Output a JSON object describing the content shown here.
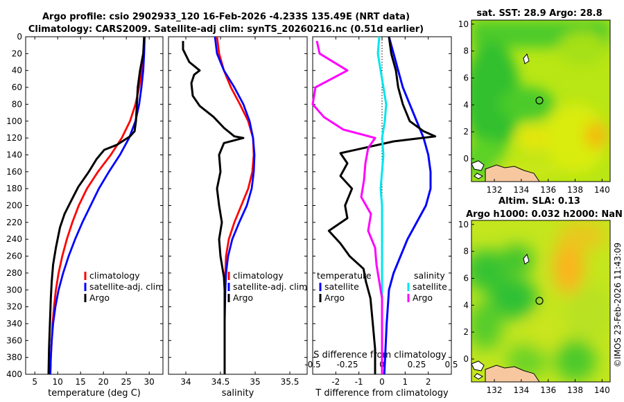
{
  "title": {
    "line1": "Argo profile: csio 2902933_120 16-Feb-2026 -4.233S 135.49E (NRT data)",
    "line2": "Climatology: CARS2009. Satellite-adj clim: synTS_20260216.nc (0.51d earlier)"
  },
  "colors": {
    "climatology": "#ff0000",
    "satellite": "#0000ff",
    "argo": "#000000",
    "salinity_diff": "#00e5ee",
    "temperature_diff_sat": "#ff00ff"
  },
  "footer": "©IMOS 23-Feb-2026 11:43:09",
  "chart_data": [
    {
      "type": "line",
      "name": "temperature-profile",
      "xlabel": "temperature (deg C)",
      "ylabel": "depth",
      "xlim": [
        3,
        33
      ],
      "ylim": [
        400,
        0
      ],
      "xticks": [
        5,
        10,
        15,
        20,
        25,
        30
      ],
      "yticks": [
        0,
        20,
        40,
        60,
        80,
        100,
        120,
        140,
        160,
        180,
        200,
        220,
        240,
        260,
        280,
        300,
        320,
        340,
        360,
        380,
        400
      ],
      "legend": [
        "climatology",
        "satellite-adj. clim",
        "Argo"
      ],
      "series": [
        {
          "name": "climatology",
          "color": "#ff0000",
          "points": [
            [
              28.9,
              0
            ],
            [
              28.8,
              20
            ],
            [
              28.4,
              40
            ],
            [
              27.8,
              60
            ],
            [
              27.0,
              80
            ],
            [
              25.8,
              100
            ],
            [
              24.0,
              120
            ],
            [
              21.6,
              140
            ],
            [
              18.8,
              160
            ],
            [
              16.4,
              180
            ],
            [
              14.6,
              200
            ],
            [
              13.2,
              220
            ],
            [
              12.0,
              240
            ],
            [
              11.0,
              260
            ],
            [
              10.2,
              280
            ],
            [
              9.6,
              300
            ],
            [
              9.2,
              320
            ],
            [
              8.9,
              340
            ],
            [
              8.7,
              360
            ],
            [
              8.5,
              380
            ],
            [
              8.4,
              400
            ]
          ]
        },
        {
          "name": "satellite-adj. clim",
          "color": "#0000ff",
          "points": [
            [
              29.0,
              0
            ],
            [
              28.9,
              20
            ],
            [
              28.7,
              40
            ],
            [
              28.3,
              60
            ],
            [
              27.8,
              80
            ],
            [
              27.0,
              100
            ],
            [
              25.6,
              120
            ],
            [
              23.6,
              140
            ],
            [
              21.2,
              160
            ],
            [
              19.0,
              180
            ],
            [
              17.2,
              200
            ],
            [
              15.4,
              220
            ],
            [
              13.8,
              240
            ],
            [
              12.4,
              260
            ],
            [
              11.2,
              280
            ],
            [
              10.2,
              300
            ],
            [
              9.5,
              320
            ],
            [
              9.0,
              340
            ],
            [
              8.7,
              360
            ],
            [
              8.5,
              380
            ],
            [
              8.4,
              400
            ]
          ]
        },
        {
          "name": "Argo",
          "color": "#000000",
          "points": [
            [
              28.9,
              0
            ],
            [
              28.7,
              20
            ],
            [
              28.0,
              40
            ],
            [
              27.5,
              60
            ],
            [
              27.3,
              80
            ],
            [
              27.1,
              100
            ],
            [
              26.8,
              112
            ],
            [
              25.8,
              118
            ],
            [
              23.0,
              128
            ],
            [
              20.2,
              134
            ],
            [
              18.5,
              145
            ],
            [
              16.8,
              160
            ],
            [
              14.5,
              178
            ],
            [
              12.8,
              196
            ],
            [
              11.5,
              210
            ],
            [
              10.5,
              226
            ],
            [
              9.6,
              250
            ],
            [
              9.0,
              270
            ],
            [
              8.7,
              290
            ],
            [
              8.5,
              310
            ],
            [
              8.3,
              340
            ],
            [
              8.1,
              370
            ],
            [
              8.0,
              400
            ]
          ]
        }
      ]
    },
    {
      "type": "line",
      "name": "salinity-profile",
      "xlabel": "salinity",
      "xlim": [
        33.75,
        35.75
      ],
      "ylim": [
        400,
        0
      ],
      "xticks": [
        34,
        34.5,
        35,
        35.5
      ],
      "legend": [
        "climatology",
        "satellite-adj. clim",
        "Argo"
      ],
      "series": [
        {
          "name": "climatology",
          "color": "#ff0000",
          "points": [
            [
              34.45,
              0
            ],
            [
              34.48,
              20
            ],
            [
              34.55,
              40
            ],
            [
              34.65,
              60
            ],
            [
              34.78,
              80
            ],
            [
              34.9,
              100
            ],
            [
              34.97,
              120
            ],
            [
              34.98,
              140
            ],
            [
              34.96,
              160
            ],
            [
              34.9,
              180
            ],
            [
              34.8,
              200
            ],
            [
              34.7,
              220
            ],
            [
              34.62,
              240
            ],
            [
              34.58,
              260
            ],
            [
              34.57,
              280
            ],
            [
              34.56,
              300
            ],
            [
              34.56,
              340
            ],
            [
              34.56,
              400
            ]
          ]
        },
        {
          "name": "satellite-adj. clim",
          "color": "#0000ff",
          "points": [
            [
              34.42,
              0
            ],
            [
              34.45,
              20
            ],
            [
              34.55,
              40
            ],
            [
              34.7,
              60
            ],
            [
              34.83,
              80
            ],
            [
              34.92,
              100
            ],
            [
              34.97,
              120
            ],
            [
              34.99,
              140
            ],
            [
              34.98,
              160
            ],
            [
              34.95,
              180
            ],
            [
              34.88,
              200
            ],
            [
              34.77,
              220
            ],
            [
              34.67,
              240
            ],
            [
              34.61,
              260
            ],
            [
              34.58,
              280
            ],
            [
              34.57,
              300
            ],
            [
              34.56,
              340
            ],
            [
              34.56,
              400
            ]
          ]
        },
        {
          "name": "Argo",
          "color": "#000000",
          "points": [
            [
              33.96,
              5
            ],
            [
              33.96,
              15
            ],
            [
              34.05,
              30
            ],
            [
              34.2,
              40
            ],
            [
              34.12,
              45
            ],
            [
              34.08,
              55
            ],
            [
              34.1,
              70
            ],
            [
              34.2,
              82
            ],
            [
              34.4,
              95
            ],
            [
              34.55,
              108
            ],
            [
              34.7,
              118
            ],
            [
              34.83,
              120
            ],
            [
              34.55,
              126
            ],
            [
              34.48,
              140
            ],
            [
              34.5,
              160
            ],
            [
              34.45,
              180
            ],
            [
              34.48,
              200
            ],
            [
              34.52,
              220
            ],
            [
              34.48,
              240
            ],
            [
              34.5,
              260
            ],
            [
              34.55,
              285
            ],
            [
              34.56,
              300
            ],
            [
              34.56,
              340
            ],
            [
              34.56,
              400
            ]
          ]
        }
      ]
    },
    {
      "type": "line",
      "name": "difference-profile",
      "xlabel": "T difference from climatology",
      "top_xlabel": "S difference from climatology",
      "xlim": [
        -3,
        3
      ],
      "ylim": [
        400,
        0
      ],
      "xticks": [
        -2,
        -1,
        0,
        1,
        2
      ],
      "xticklabels": [
        "-2",
        "-1",
        "0",
        "1",
        "2"
      ],
      "top_xticks": [
        -0.5,
        -0.25,
        0,
        0.25,
        0.5
      ],
      "top_xticklabels": [
        "-0.5",
        "-0.25",
        "0",
        "0.25",
        "0.5"
      ],
      "legend_temperature": [
        "temperature",
        "satellite",
        "Argo"
      ],
      "legend_salinity": [
        "salinity",
        "satellite",
        "Argo"
      ],
      "series": [
        {
          "name": "T satellite",
          "color": "#0000ff",
          "points": [
            [
              0.3,
              0
            ],
            [
              0.5,
              20
            ],
            [
              0.7,
              40
            ],
            [
              0.9,
              60
            ],
            [
              1.2,
              80
            ],
            [
              1.5,
              100
            ],
            [
              1.8,
              120
            ],
            [
              2.0,
              140
            ],
            [
              2.1,
              160
            ],
            [
              2.1,
              180
            ],
            [
              1.9,
              200
            ],
            [
              1.5,
              220
            ],
            [
              1.1,
              240
            ],
            [
              0.8,
              260
            ],
            [
              0.5,
              280
            ],
            [
              0.3,
              300
            ],
            [
              0.2,
              340
            ],
            [
              0.1,
              400
            ]
          ]
        },
        {
          "name": "T Argo",
          "color": "#000000",
          "points": [
            [
              0.3,
              0
            ],
            [
              0.4,
              20
            ],
            [
              0.6,
              40
            ],
            [
              0.7,
              60
            ],
            [
              0.9,
              80
            ],
            [
              1.2,
              100
            ],
            [
              1.8,
              112
            ],
            [
              2.3,
              118
            ],
            [
              0.5,
              124
            ],
            [
              -1.8,
              138
            ],
            [
              -1.5,
              150
            ],
            [
              -1.8,
              165
            ],
            [
              -1.3,
              180
            ],
            [
              -1.6,
              200
            ],
            [
              -1.5,
              215
            ],
            [
              -2.3,
              230
            ],
            [
              -1.8,
              245
            ],
            [
              -1.4,
              260
            ],
            [
              -0.8,
              275
            ],
            [
              -0.7,
              290
            ],
            [
              -0.5,
              310
            ],
            [
              -0.4,
              340
            ],
            [
              -0.3,
              370
            ],
            [
              -0.3,
              400
            ]
          ]
        },
        {
          "name": "S satellite",
          "color": "#00e5ee",
          "points": [
            [
              -0.02,
              0
            ],
            [
              -0.03,
              20
            ],
            [
              -0.01,
              40
            ],
            [
              0.01,
              60
            ],
            [
              0.03,
              80
            ],
            [
              0.02,
              100
            ],
            [
              0.0,
              120
            ],
            [
              0.01,
              140
            ],
            [
              0.0,
              160
            ],
            [
              -0.01,
              180
            ],
            [
              0.0,
              200
            ],
            [
              0.0,
              240
            ],
            [
              0.0,
              300
            ],
            [
              0.0,
              340
            ],
            [
              0.0,
              400
            ]
          ]
        },
        {
          "name": "S Argo",
          "color": "#ff00ff",
          "points": [
            [
              -0.47,
              5
            ],
            [
              -0.45,
              20
            ],
            [
              -0.25,
              40
            ],
            [
              -0.48,
              60
            ],
            [
              -0.5,
              80
            ],
            [
              -0.42,
              95
            ],
            [
              -0.28,
              110
            ],
            [
              -0.05,
              120
            ],
            [
              -0.1,
              132
            ],
            [
              -0.12,
              150
            ],
            [
              -0.13,
              170
            ],
            [
              -0.15,
              190
            ],
            [
              -0.08,
              210
            ],
            [
              -0.1,
              230
            ],
            [
              -0.05,
              250
            ],
            [
              -0.04,
              270
            ],
            [
              -0.02,
              290
            ],
            [
              0.0,
              310
            ],
            [
              0.0,
              340
            ],
            [
              0.0,
              400
            ]
          ]
        }
      ]
    },
    {
      "type": "heatmap",
      "name": "sst-map",
      "title": "sat. SST: 28.9 Argo: 28.8",
      "xlim": [
        130.3,
        140.6
      ],
      "ylim": [
        -1.7,
        10.3
      ],
      "xticks": [
        132,
        134,
        136,
        138,
        140
      ],
      "yticks": [
        0,
        2,
        4,
        6,
        8,
        10
      ],
      "marker": [
        135.49,
        4.23
      ]
    },
    {
      "type": "heatmap",
      "name": "sla-map",
      "title": "Altim. SLA: 0.13",
      "subtitle": "Argo h1000: 0.032 h2000: NaN",
      "xlim": [
        130.3,
        140.6
      ],
      "ylim": [
        -1.7,
        10.3
      ],
      "xticks": [
        132,
        134,
        136,
        138,
        140
      ],
      "yticks": [
        0,
        2,
        4,
        6,
        8,
        10
      ],
      "marker": [
        135.49,
        4.23
      ]
    }
  ]
}
